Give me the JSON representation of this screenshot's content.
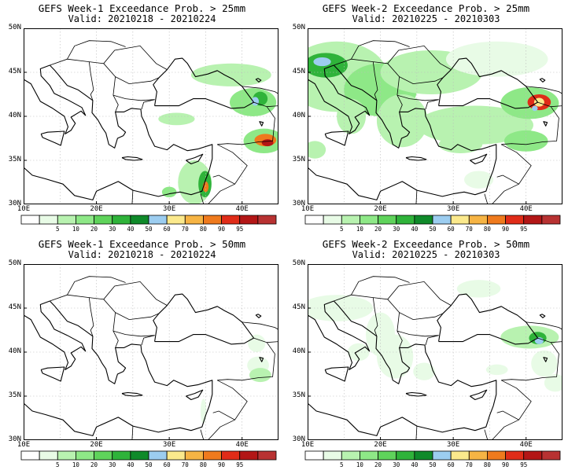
{
  "panels": [
    {
      "id": "w1-25",
      "title": "GEFS Week-1 Exceedance Prob. > 25mm",
      "valid": "Valid: 20210218 - 20210224"
    },
    {
      "id": "w2-25",
      "title": "GEFS Week-2 Exceedance Prob. > 25mm",
      "valid": "Valid: 20210225 - 20210303"
    },
    {
      "id": "w1-50",
      "title": "GEFS Week-1 Exceedance Prob. > 50mm",
      "valid": "Valid: 20210218 - 20210224"
    },
    {
      "id": "w2-50",
      "title": "GEFS Week-2 Exceedance Prob. > 50mm",
      "valid": "Valid: 20210225 - 20210303"
    }
  ],
  "axes": {
    "lat_labels": [
      "50N",
      "45N",
      "40N",
      "35N",
      "30N"
    ],
    "lon_labels": [
      "10E",
      "20E",
      "30E",
      "40E"
    ]
  },
  "colorbar": {
    "labels": [
      "5",
      "10",
      "20",
      "30",
      "40",
      "50",
      "60",
      "70",
      "80",
      "90",
      "95"
    ],
    "colors": [
      "#ffffff",
      "#e8fbe6",
      "#b8f2b0",
      "#8ee887",
      "#5fd35b",
      "#2fb33a",
      "#0f8a2a",
      "#9ccdf0",
      "#fbe98c",
      "#f6b444",
      "#ef7a1d",
      "#e02c18",
      "#b31616",
      "#b83232"
    ]
  }
}
